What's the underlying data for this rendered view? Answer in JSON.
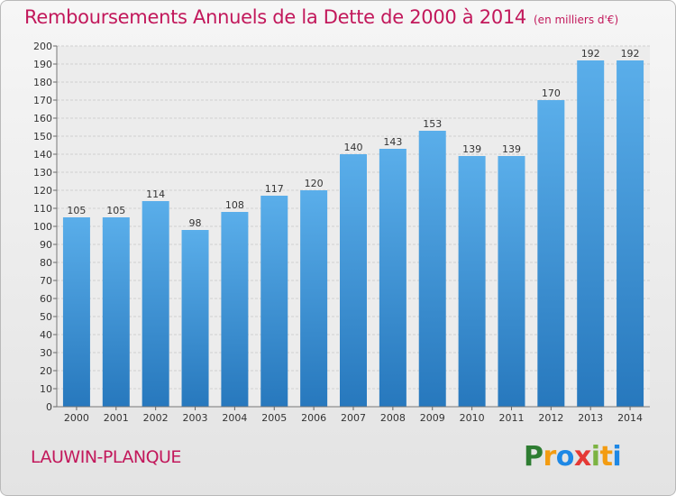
{
  "chart_data": {
    "type": "bar",
    "title": "Remboursements Annuels de la Dette de 2000 à 2014",
    "subtitle": "(en milliers d'€)",
    "categories": [
      "2000",
      "2001",
      "2002",
      "2003",
      "2004",
      "2005",
      "2006",
      "2007",
      "2008",
      "2009",
      "2010",
      "2011",
      "2012",
      "2013",
      "2014"
    ],
    "values": [
      105,
      105,
      114,
      98,
      108,
      117,
      120,
      140,
      143,
      153,
      139,
      139,
      170,
      192,
      192
    ],
    "ylim": [
      0,
      200
    ],
    "yticks": [
      0,
      10,
      20,
      30,
      40,
      50,
      60,
      70,
      80,
      90,
      100,
      110,
      120,
      130,
      140,
      150,
      160,
      170,
      180,
      190,
      200
    ],
    "grid": true,
    "bar_color": "#3c8fd8",
    "title_color": "#c2185b"
  },
  "footer": {
    "commune": "LAUWIN-PLANQUE",
    "brand_letters": [
      "P",
      "r",
      "o",
      "x",
      "i",
      "t",
      "i"
    ],
    "brand_colors": [
      "#2e7d32",
      "#f39c12",
      "#1e88e5",
      "#e53935",
      "#7cb342",
      "#f39c12",
      "#1e88e5"
    ]
  }
}
